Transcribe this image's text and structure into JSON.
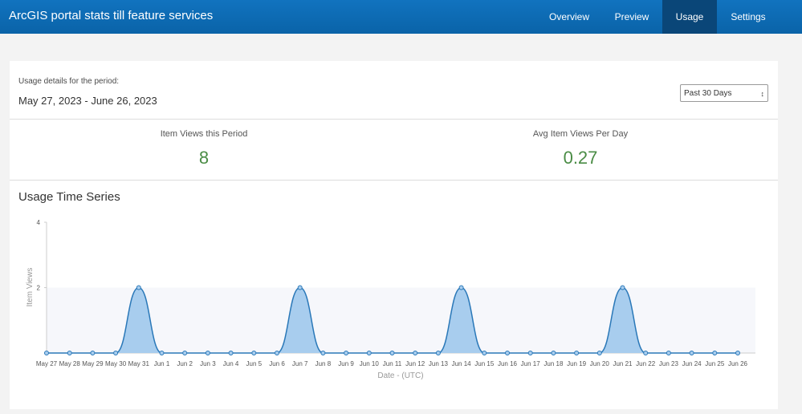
{
  "header": {
    "title": "ArcGIS portal stats till feature services",
    "tabs": [
      "Overview",
      "Preview",
      "Usage",
      "Settings"
    ],
    "active_tab": 2
  },
  "period": {
    "label": "Usage details for the period:",
    "range": "May 27, 2023 - June 26, 2023",
    "select": "Past 30 Days"
  },
  "stats": [
    {
      "label": "Item Views this Period",
      "value": 8
    },
    {
      "label": "Avg Item Views Per Day",
      "value": 0.27
    }
  ],
  "chart_data": {
    "type": "area",
    "title": "Usage Time Series",
    "x_label": "Date - (UTC)",
    "y_label": "Item Views",
    "categories": [
      "May 27",
      "May 28",
      "May 29",
      "May 30",
      "May 31",
      "Jun 1",
      "Jun 2",
      "Jun 3",
      "Jun 4",
      "Jun 5",
      "Jun 6",
      "Jun 7",
      "Jun 8",
      "Jun 9",
      "Jun 10",
      "Jun 11",
      "Jun 12",
      "Jun 13",
      "Jun 14",
      "Jun 15",
      "Jun 16",
      "Jun 17",
      "Jun 18",
      "Jun 19",
      "Jun 20",
      "Jun 21",
      "Jun 22",
      "Jun 23",
      "Jun 24",
      "Jun 25",
      "Jun 26"
    ],
    "values": [
      0,
      0,
      0,
      0,
      2,
      0,
      0,
      0,
      0,
      0,
      0,
      2,
      0,
      0,
      0,
      0,
      0,
      0,
      2,
      0,
      0,
      0,
      0,
      0,
      0,
      2,
      0,
      0,
      0,
      0,
      0
    ],
    "color": "#a8cdee",
    "line_color": "#2a78b8",
    "ylim": [
      0,
      4
    ],
    "yticks": [
      2,
      4
    ]
  }
}
